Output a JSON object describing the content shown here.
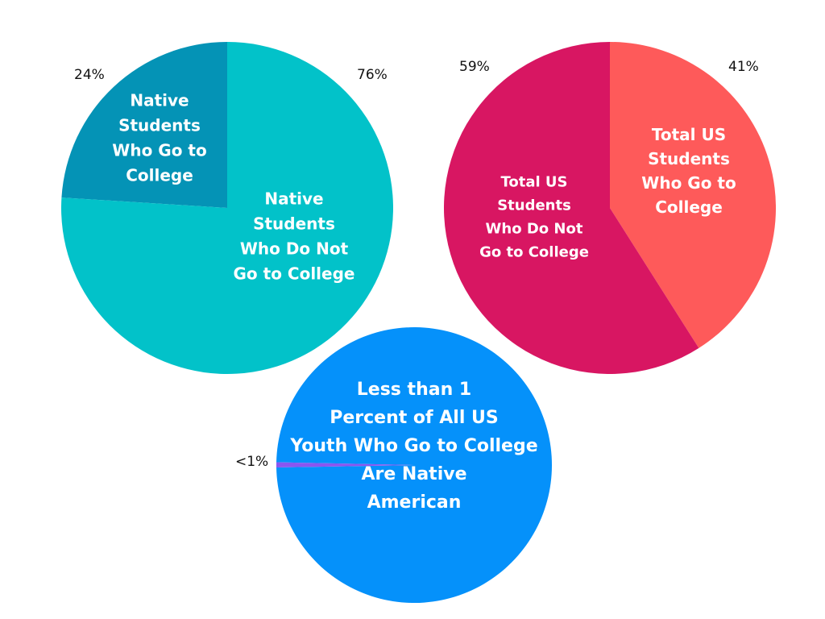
{
  "chart_data": [
    {
      "type": "pie",
      "slices": [
        {
          "label": "Native Students Who Go to College",
          "value": 24,
          "pct_label": "24%",
          "color": "#0493b6"
        },
        {
          "label": "Native Students Who Do Not Go to College",
          "value": 76,
          "pct_label": "76%",
          "color": "#02c2c9"
        }
      ]
    },
    {
      "type": "pie",
      "slices": [
        {
          "label": "Total US Students Who Go to College",
          "value": 41,
          "pct_label": "41%",
          "color": "#fe5a5a"
        },
        {
          "label": "Total US Students Who Do Not Go to College",
          "value": 59,
          "pct_label": "59%",
          "color": "#d81662"
        }
      ]
    },
    {
      "type": "pie",
      "slices": [
        {
          "label": "Less than 1 Percent of All US Youth Who Go to College Are Native American",
          "value": 99.4,
          "pct_label": "",
          "color": "#0591fa"
        },
        {
          "label": "",
          "value": 0.6,
          "pct_label": "<1%",
          "color": "#8a56f0"
        }
      ]
    }
  ]
}
